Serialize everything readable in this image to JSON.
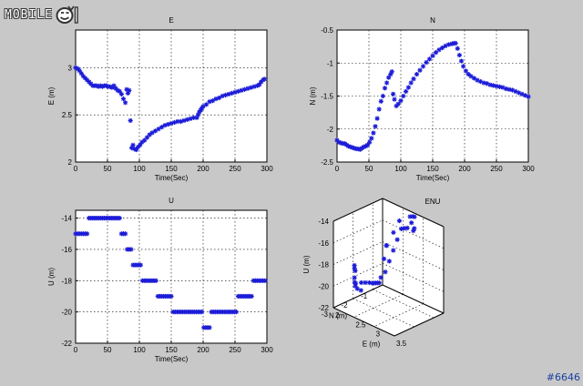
{
  "logo": {
    "text": "MOBILE"
  },
  "watermark": {
    "text": "#6646"
  },
  "colors": {
    "marker": "#1c1cd8",
    "background": "#c8c8c8",
    "axes_bg": "#ffffff",
    "grid": "#000000"
  },
  "chart_data": [
    {
      "type": "scatter",
      "title": "E",
      "xlabel": "Time(Sec)",
      "ylabel": "E (m)",
      "xlim": [
        0,
        300
      ],
      "ylim": [
        2,
        3.4
      ],
      "xticks": [
        "0",
        "50",
        "100",
        "150",
        "200",
        "250",
        "300"
      ],
      "yticks": [
        "2",
        "2.5",
        "3"
      ],
      "grid": true,
      "marker": "*",
      "x": [
        0,
        3,
        6,
        9,
        12,
        15,
        18,
        21,
        24,
        27,
        30,
        33,
        36,
        39,
        42,
        45,
        48,
        51,
        54,
        57,
        60,
        63,
        66,
        69,
        72,
        75,
        78,
        80,
        82,
        84,
        86,
        88,
        90,
        92,
        95,
        98,
        101,
        104,
        108,
        112,
        116,
        120,
        125,
        130,
        135,
        140,
        145,
        150,
        155,
        160,
        165,
        170,
        175,
        180,
        185,
        190,
        192,
        194,
        196,
        198,
        200,
        205,
        210,
        215,
        220,
        225,
        230,
        235,
        240,
        245,
        250,
        255,
        260,
        265,
        270,
        275,
        280,
        285,
        288,
        291,
        294,
        296
      ],
      "y": [
        3.0,
        2.99,
        2.97,
        2.94,
        2.91,
        2.89,
        2.87,
        2.85,
        2.83,
        2.81,
        2.81,
        2.81,
        2.8,
        2.81,
        2.8,
        2.81,
        2.81,
        2.8,
        2.8,
        2.79,
        2.81,
        2.78,
        2.76,
        2.75,
        2.72,
        2.67,
        2.63,
        2.77,
        2.73,
        2.76,
        2.44,
        2.15,
        2.18,
        2.14,
        2.13,
        2.16,
        2.18,
        2.21,
        2.23,
        2.26,
        2.29,
        2.31,
        2.33,
        2.35,
        2.37,
        2.39,
        2.4,
        2.41,
        2.42,
        2.43,
        2.43,
        2.44,
        2.45,
        2.46,
        2.47,
        2.47,
        2.5,
        2.53,
        2.55,
        2.57,
        2.59,
        2.61,
        2.64,
        2.65,
        2.67,
        2.68,
        2.7,
        2.71,
        2.72,
        2.73,
        2.74,
        2.75,
        2.76,
        2.77,
        2.78,
        2.79,
        2.8,
        2.81,
        2.82,
        2.85,
        2.87,
        2.88
      ]
    },
    {
      "type": "scatter",
      "title": "N",
      "xlabel": "Time(Sec)",
      "ylabel": "N (m)",
      "xlim": [
        0,
        300
      ],
      "ylim": [
        -2.5,
        -0.5
      ],
      "xticks": [
        "0",
        "50",
        "100",
        "150",
        "200",
        "250",
        "300"
      ],
      "yticks": [
        "-2.5",
        "-2",
        "-1.5",
        "-1",
        "-0.5"
      ],
      "grid": true,
      "marker": "*",
      "x": [
        0,
        3,
        6,
        9,
        12,
        15,
        18,
        21,
        24,
        27,
        30,
        33,
        36,
        39,
        42,
        45,
        48,
        51,
        54,
        57,
        60,
        63,
        66,
        69,
        72,
        75,
        78,
        81,
        84,
        86,
        88,
        90,
        93,
        96,
        100,
        104,
        108,
        112,
        116,
        120,
        125,
        130,
        135,
        140,
        145,
        150,
        155,
        160,
        165,
        170,
        175,
        180,
        183,
        186,
        189,
        192,
        195,
        198,
        202,
        206,
        210,
        215,
        220,
        225,
        230,
        235,
        240,
        245,
        250,
        255,
        260,
        265,
        270,
        275,
        280,
        285,
        290,
        295,
        300
      ],
      "y": [
        -2.17,
        -2.2,
        -2.21,
        -2.22,
        -2.22,
        -2.24,
        -2.26,
        -2.27,
        -2.28,
        -2.29,
        -2.3,
        -2.3,
        -2.31,
        -2.29,
        -2.27,
        -2.26,
        -2.24,
        -2.2,
        -2.14,
        -2.06,
        -1.96,
        -1.84,
        -1.7,
        -1.58,
        -1.5,
        -1.38,
        -1.3,
        -1.22,
        -1.17,
        -1.13,
        -1.47,
        -1.55,
        -1.65,
        -1.62,
        -1.57,
        -1.5,
        -1.43,
        -1.37,
        -1.3,
        -1.24,
        -1.17,
        -1.11,
        -1.05,
        -0.99,
        -0.94,
        -0.89,
        -0.84,
        -0.8,
        -0.77,
        -0.74,
        -0.72,
        -0.71,
        -0.7,
        -0.7,
        -0.78,
        -0.88,
        -0.97,
        -1.05,
        -1.12,
        -1.17,
        -1.2,
        -1.23,
        -1.26,
        -1.28,
        -1.3,
        -1.31,
        -1.33,
        -1.34,
        -1.35,
        -1.36,
        -1.37,
        -1.39,
        -1.4,
        -1.41,
        -1.43,
        -1.45,
        -1.47,
        -1.49,
        -1.51
      ]
    },
    {
      "type": "scatter",
      "title": "U",
      "xlabel": "Time(Sec)",
      "ylabel": "U (m)",
      "xlim": [
        0,
        300
      ],
      "ylim": [
        -22,
        -13.5
      ],
      "xticks": [
        "0",
        "50",
        "100",
        "150",
        "200",
        "250",
        "300"
      ],
      "yticks": [
        "-22",
        "-20",
        "-18",
        "-16",
        "-14"
      ],
      "grid": true,
      "marker": "*",
      "x": [
        0,
        3,
        6,
        9,
        12,
        15,
        18,
        21,
        24,
        27,
        30,
        33,
        36,
        39,
        42,
        45,
        48,
        51,
        54,
        57,
        60,
        63,
        66,
        69,
        72,
        75,
        78,
        81,
        84,
        87,
        90,
        93,
        96,
        99,
        102,
        105,
        108,
        111,
        114,
        117,
        120,
        123,
        126,
        129,
        132,
        135,
        138,
        141,
        144,
        147,
        150,
        153,
        156,
        159,
        162,
        165,
        168,
        171,
        174,
        177,
        180,
        183,
        186,
        189,
        192,
        195,
        198,
        201,
        204,
        207,
        210,
        213,
        216,
        219,
        222,
        225,
        228,
        231,
        234,
        237,
        240,
        243,
        246,
        249,
        252,
        255,
        258,
        261,
        264,
        267,
        270,
        273,
        276,
        279,
        282,
        285,
        288,
        291,
        294,
        297
      ],
      "y": [
        -15,
        -15,
        -15,
        -15,
        -15,
        -15,
        -15,
        -14,
        -14,
        -14,
        -14,
        -14,
        -14,
        -14,
        -14,
        -14,
        -14,
        -14,
        -14,
        -14,
        -14,
        -14,
        -14,
        -14,
        -15,
        -15,
        -15,
        -16,
        -16,
        -16,
        -17,
        -17,
        -17,
        -17,
        -17,
        -18,
        -18,
        -18,
        -18,
        -18,
        -18,
        -18,
        -18,
        -19,
        -19,
        -19,
        -19,
        -19,
        -19,
        -19,
        -19,
        -20,
        -20,
        -20,
        -20,
        -20,
        -20,
        -20,
        -20,
        -20,
        -20,
        -20,
        -20,
        -20,
        -20,
        -20,
        -20,
        -21,
        -21,
        -21,
        -21,
        -20,
        -20,
        -20,
        -20,
        -20,
        -20,
        -20,
        -20,
        -20,
        -20,
        -20,
        -20,
        -20,
        -20,
        -19,
        -19,
        -19,
        -19,
        -19,
        -19,
        -19,
        -19,
        -18,
        -18,
        -18,
        -18,
        -18,
        -18,
        -18
      ]
    },
    {
      "type": "scatter",
      "title": "ENU",
      "xlabel": "E (m)",
      "ylabel": "N (m)",
      "zlabel": "U (m)",
      "xlim": [
        2,
        3.5
      ],
      "ylim": [
        -3,
        -0.5
      ],
      "zlim": [
        -22,
        -14
      ],
      "xticks": [
        "2",
        "2.5",
        "3",
        "3.5"
      ],
      "yticks": [
        "-3",
        "-2",
        "-1"
      ],
      "zticks": [
        "-22",
        "-20",
        "-18",
        "-16",
        "-14"
      ],
      "grid": true,
      "marker": "*",
      "points": [
        {
          "e": 2.15,
          "n": -2.2,
          "u": -19
        },
        {
          "e": 2.14,
          "n": -2.22,
          "u": -18.5
        },
        {
          "e": 2.16,
          "n": -2.25,
          "u": -20
        },
        {
          "e": 2.18,
          "n": -2.3,
          "u": -19.5
        },
        {
          "e": 2.2,
          "n": -2.28,
          "u": -20
        },
        {
          "e": 2.13,
          "n": -2.2,
          "u": -18.8
        },
        {
          "e": 2.25,
          "n": -2.1,
          "u": -20
        },
        {
          "e": 2.3,
          "n": -2.0,
          "u": -20
        },
        {
          "e": 2.35,
          "n": -1.9,
          "u": -20
        },
        {
          "e": 2.4,
          "n": -1.85,
          "u": -20
        },
        {
          "e": 2.42,
          "n": -1.8,
          "u": -20
        },
        {
          "e": 2.44,
          "n": -1.75,
          "u": -20
        },
        {
          "e": 2.46,
          "n": -1.7,
          "u": -20
        },
        {
          "e": 2.48,
          "n": -1.66,
          "u": -20
        },
        {
          "e": 2.5,
          "n": -1.62,
          "u": -19.5
        },
        {
          "e": 2.55,
          "n": -1.5,
          "u": -19
        },
        {
          "e": 2.6,
          "n": -1.4,
          "u": -18
        },
        {
          "e": 2.65,
          "n": -1.3,
          "u": -17
        },
        {
          "e": 2.7,
          "n": -1.2,
          "u": -16
        },
        {
          "e": 2.75,
          "n": -1.1,
          "u": -15
        },
        {
          "e": 2.77,
          "n": -1.0,
          "u": -15
        },
        {
          "e": 2.8,
          "n": -0.9,
          "u": -15
        },
        {
          "e": 2.82,
          "n": -0.8,
          "u": -14
        },
        {
          "e": 2.85,
          "n": -0.72,
          "u": -14
        },
        {
          "e": 2.88,
          "n": -0.7,
          "u": -14
        },
        {
          "e": 2.9,
          "n": -0.75,
          "u": -15
        },
        {
          "e": 2.95,
          "n": -0.9,
          "u": -15
        },
        {
          "e": 3.0,
          "n": -1.1,
          "u": -14
        },
        {
          "e": 2.8,
          "n": -1.3,
          "u": -14
        },
        {
          "e": 2.75,
          "n": -1.5,
          "u": -15
        },
        {
          "e": 2.72,
          "n": -1.8,
          "u": -16
        },
        {
          "e": 2.76,
          "n": -2.0,
          "u": -17
        },
        {
          "e": 2.44,
          "n": -1.2,
          "u": -17
        },
        {
          "e": 2.18,
          "n": -2.26,
          "u": -20.3
        },
        {
          "e": 2.22,
          "n": -2.24,
          "u": -20.5
        },
        {
          "e": 2.28,
          "n": -2.18,
          "u": -20.6
        }
      ]
    }
  ]
}
